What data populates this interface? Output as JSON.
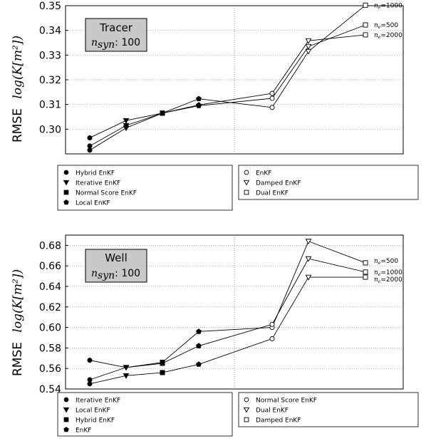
{
  "chart_data": [
    {
      "type": "line",
      "ylabel_prefix": "RMSE",
      "ylabel_math": "log(K[m²])",
      "ylim": [
        0.29,
        0.35
      ],
      "yticks": [
        "0.30",
        "0.31",
        "0.32",
        "0.33",
        "0.34",
        "0.35"
      ],
      "grid": true,
      "x": [
        1,
        2,
        3,
        4,
        5,
        6
      ],
      "box": {
        "title": "Tracer",
        "label_text": "n",
        "label_sub": "syn",
        "value": ": 100"
      },
      "legend_left": [
        {
          "name": "Hybrid EnKF",
          "marker": "circle"
        },
        {
          "name": "Iterative EnKF",
          "marker": "triangle-down"
        },
        {
          "name": "Normal Score EnKF",
          "marker": "square"
        },
        {
          "name": "Local EnKF",
          "marker": "pentagon"
        }
      ],
      "legend_right": [
        {
          "name": "EnKF",
          "marker": "circle-open"
        },
        {
          "name": "Damped EnKF",
          "marker": "triangle-down-open"
        },
        {
          "name": "Dual EnKF",
          "marker": "square-open"
        }
      ],
      "series": [
        {
          "values": [
            0.2965,
            0.3035,
            0.3065,
            0.3123,
            0.3088,
            0.3315
          ]
        },
        {
          "values": [
            0.2932,
            0.3015,
            0.3065,
            0.3095,
            0.3125,
            0.3335
          ]
        },
        {
          "values": [
            0.2915,
            0.3005,
            0.3065,
            0.3098,
            0.3145,
            0.3358
          ]
        }
      ],
      "end_values": [
        0.3502,
        0.3422,
        0.3382
      ],
      "end_labels": [
        "=1000",
        "=500",
        "=2000"
      ],
      "end_label_n": "n",
      "end_label_sub": "e"
    },
    {
      "type": "line",
      "ylabel_prefix": "RMSE",
      "ylabel_math": "log(K[m²])",
      "ylim": [
        0.54,
        0.69
      ],
      "yticks": [
        "0.54",
        "0.56",
        "0.58",
        "0.60",
        "0.62",
        "0.64",
        "0.66",
        "0.68"
      ],
      "grid": true,
      "x": [
        1,
        2,
        3,
        4,
        5,
        6
      ],
      "box": {
        "title": "Well",
        "label_text": "n",
        "label_sub": "syn",
        "value": ": 100"
      },
      "legend_left": [
        {
          "name": "Iterative EnKF",
          "marker": "circle"
        },
        {
          "name": "Local EnKF",
          "marker": "triangle-down"
        },
        {
          "name": "Hybrid EnKF",
          "marker": "square"
        },
        {
          "name": "EnKF",
          "marker": "pentagon"
        }
      ],
      "legend_right": [
        {
          "name": "Normal Score EnKF",
          "marker": "circle-open"
        },
        {
          "name": "Dual EnKF",
          "marker": "triangle-down-open"
        },
        {
          "name": "Damped EnKF",
          "marker": "square-open"
        }
      ],
      "series": [
        {
          "values": [
            0.568,
            0.561,
            0.566,
            0.596,
            0.6,
            0.684
          ]
        },
        {
          "values": [
            0.549,
            0.561,
            0.565,
            0.582,
            0.603,
            0.667
          ]
        },
        {
          "values": [
            0.545,
            0.553,
            0.556,
            0.564,
            0.589,
            0.649
          ]
        }
      ],
      "end_values": [
        0.663,
        0.654,
        0.649
      ],
      "end_labels": [
        "=500",
        "=1000",
        "=2000"
      ],
      "end_label_n": "n",
      "end_label_sub": "e"
    }
  ]
}
